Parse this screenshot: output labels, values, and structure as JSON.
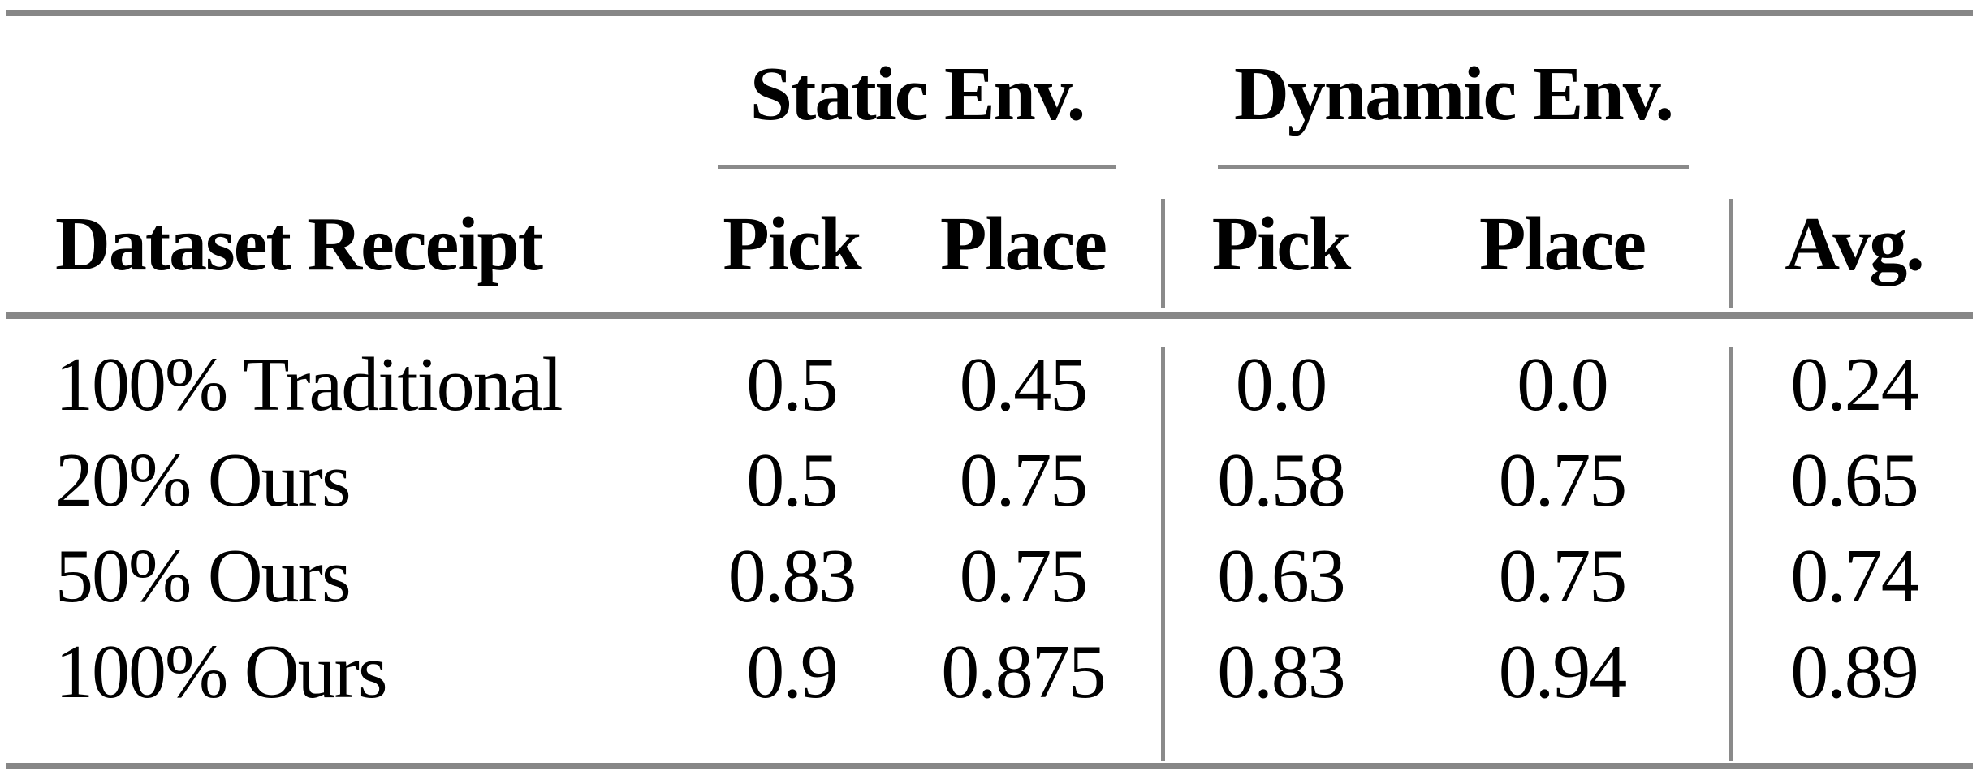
{
  "table": {
    "group_headers": {
      "static": "Static Env.",
      "dynamic": "Dynamic Env."
    },
    "columns": [
      "Dataset Receipt",
      "Pick",
      "Place",
      "Pick",
      "Place",
      "Avg."
    ],
    "rows": [
      {
        "cells": [
          "100% Traditional",
          "0.5",
          "0.45",
          "0.0",
          "0.0",
          "0.24"
        ]
      },
      {
        "cells": [
          "20% Ours",
          "0.5",
          "0.75",
          "0.58",
          "0.75",
          "0.65"
        ]
      },
      {
        "cells": [
          "50% Ours",
          "0.83",
          "0.75",
          "0.63",
          "0.75",
          "0.74"
        ]
      },
      {
        "cells": [
          "100% Ours",
          "0.9",
          "0.875",
          "0.83",
          "0.94",
          "0.89"
        ]
      }
    ],
    "colors": {
      "rule_gray": "#878787",
      "thin_rule_gray": "#8a8a8a",
      "text": "#000000",
      "background": "#ffffff"
    }
  }
}
